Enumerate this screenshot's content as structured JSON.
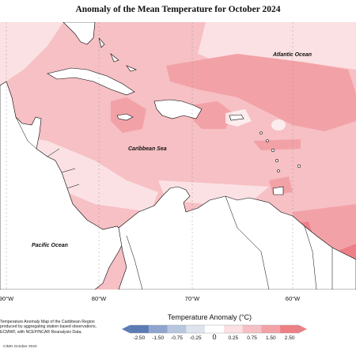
{
  "map": {
    "title": "Anomaly of the Mean Temperature for October 2024",
    "labels": {
      "atlantic": "Atlantic Ocean",
      "caribbean": "Caribbean Sea",
      "pacific": "Pacific Ocean"
    },
    "longitudes": [
      "90°W",
      "80°W",
      "70°W",
      "60°W"
    ],
    "note": [
      "Temperature Anomaly Map of the Caribbean Region",
      "produced by aggregating station based observations,",
      "ECMWF, with NCEP/NCAR Reanalysis Data."
    ],
    "credit": "CIMH October 2024"
  },
  "legend": {
    "title": "Temperature Anomaly (°C)",
    "ticks": [
      "-2.50",
      "-1.50",
      "-0.75",
      "-0.25",
      "0",
      "0.25",
      "0.75",
      "1.50",
      "2.50"
    ],
    "colors": [
      "#5b7bb5",
      "#8fa4cf",
      "#b8c6e0",
      "#dde4ee",
      "#ffffff",
      "#fbe1e3",
      "#f6c0c4",
      "#f2a2a7",
      "#ee7f86"
    ]
  },
  "colors": {
    "land": "#ffffff",
    "coast": "#000000",
    "anom_0_25": "#fbe1e3",
    "anom_0_75": "#f6c0c4",
    "anom_1_50": "#f2a2a7",
    "anom_2_50": "#ee7f86"
  }
}
